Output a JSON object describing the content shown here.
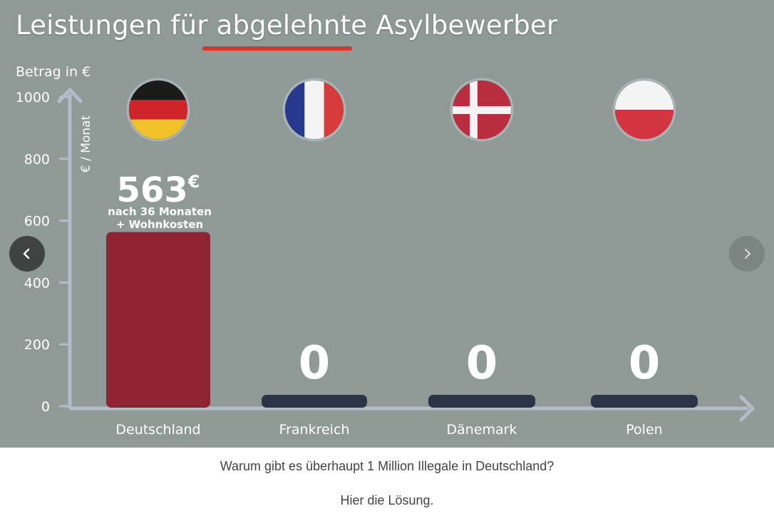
{
  "slide": {
    "title": "Leistungen für abgelehnte Asylbewerber"
  },
  "chart_data": {
    "type": "bar",
    "title": "Leistungen für abgelehnte Asylbewerber",
    "ylabel": "Betrag in €",
    "unit_label": "€ / Monat",
    "ylim": [
      0,
      1000
    ],
    "yticks": [
      0,
      200,
      400,
      600,
      800,
      1000
    ],
    "categories": [
      "Deutschland",
      "Frankreich",
      "Dänemark",
      "Polen"
    ],
    "values": [
      563,
      0,
      0,
      0
    ],
    "data_labels": [
      "563€",
      "0",
      "0",
      "0"
    ],
    "annotation": [
      "nach 36 Monaten",
      "+ Wohnkosten"
    ],
    "bar_colors": [
      "#8e2431",
      "#2c3447",
      "#2c3447",
      "#2c3447"
    ],
    "flags": [
      "germany-flag",
      "france-flag",
      "denmark-flag",
      "poland-flag"
    ]
  },
  "carousel": {
    "prev_icon": "chevron-left-icon",
    "next_icon": "chevron-right-icon"
  },
  "captions": {
    "line1": "Warum gibt es überhaupt 1 Million Illegale in Deutschland?",
    "line2": "Hier die Lösung."
  },
  "colors": {
    "background": "#8f9a97",
    "axis": "#b3bdc9",
    "highlight_underline": "#d8352f"
  }
}
